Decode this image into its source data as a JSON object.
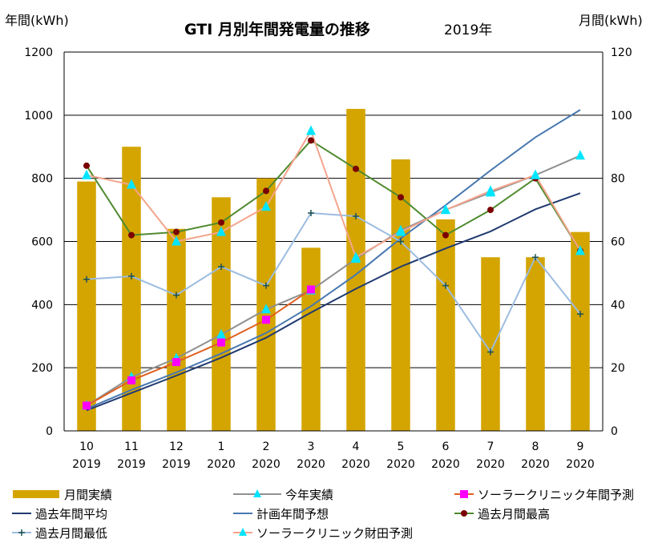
{
  "chart_data": {
    "type": "bar",
    "title": "GTI 月別年間発電量の推移",
    "subtitle": "2019年",
    "ylabel_left": "年間(kWh)",
    "ylabel_right": "月間(kWh)",
    "ylim_left": [
      0,
      1200
    ],
    "ylim_right": [
      0,
      120
    ],
    "yticks_left": [
      "0",
      "200",
      "400",
      "600",
      "800",
      "1000",
      "1200"
    ],
    "yticks_right": [
      "0",
      "20",
      "40",
      "60",
      "80",
      "100",
      "120"
    ],
    "grid": true,
    "legend_position": "bottom",
    "categories": [
      {
        "month": "10",
        "year": "2019"
      },
      {
        "month": "11",
        "year": "2019"
      },
      {
        "month": "12",
        "year": "2019"
      },
      {
        "month": "1",
        "year": "2020"
      },
      {
        "month": "2",
        "year": "2020"
      },
      {
        "month": "3",
        "year": "2020"
      },
      {
        "month": "4",
        "year": "2020"
      },
      {
        "month": "5",
        "year": "2020"
      },
      {
        "month": "6",
        "year": "2020"
      },
      {
        "month": "7",
        "year": "2020"
      },
      {
        "month": "8",
        "year": "2020"
      },
      {
        "month": "9",
        "year": "2020"
      }
    ],
    "series": [
      {
        "name": "月間実績",
        "kind": "bar",
        "axis": "right",
        "color": "#d4a500",
        "values": [
          79,
          90,
          64,
          74,
          80,
          58,
          102,
          86,
          67,
          55,
          55,
          63
        ]
      },
      {
        "name": "今年実績",
        "kind": "line",
        "axis": "left",
        "color": "#909090",
        "marker": "triangle",
        "marker_color": "#00e5ff",
        "values": [
          80,
          170,
          230,
          305,
          385,
          445,
          545,
          635,
          700,
          755,
          810,
          872
        ]
      },
      {
        "name": "ソーラークリニック年間予測",
        "kind": "line",
        "axis": "left",
        "color": "#e06020",
        "marker": "square",
        "marker_color": "#ff00ff",
        "values": [
          80,
          160,
          218,
          280,
          352,
          448,
          null,
          null,
          null,
          null,
          null,
          null
        ]
      },
      {
        "name": "過去年間平均",
        "kind": "line",
        "axis": "left",
        "color": "#203a70",
        "marker": "none",
        "values": [
          65,
          120,
          175,
          232,
          295,
          375,
          450,
          520,
          578,
          632,
          702,
          753
        ]
      },
      {
        "name": "計画年間予想",
        "kind": "line",
        "axis": "left",
        "color": "#4878b0",
        "marker": "none",
        "values": [
          70,
          130,
          185,
          245,
          310,
          395,
          495,
          610,
          715,
          825,
          930,
          1017
        ]
      },
      {
        "name": "過去月間最高",
        "kind": "line",
        "axis": "right",
        "color": "#4e8a2e",
        "marker": "circle",
        "marker_color": "#7a0000",
        "values": [
          84,
          62,
          63,
          66,
          76,
          92,
          83,
          74,
          62,
          70,
          80,
          57
        ]
      },
      {
        "name": "過去月間最低",
        "kind": "line",
        "axis": "right",
        "color": "#9cbce0",
        "marker": "plus",
        "marker_color": "#1a5050",
        "values": [
          48,
          49,
          43,
          52,
          46,
          69,
          68,
          60,
          46,
          25,
          55,
          37
        ]
      },
      {
        "name": "ソーラークリニック財田予測",
        "kind": "line",
        "axis": "right",
        "color": "#f4a48c",
        "marker": "triangle",
        "marker_color": "#00e5ff",
        "values": [
          81,
          78,
          60,
          63,
          71,
          95,
          55,
          63,
          70,
          76,
          81,
          57
        ]
      }
    ]
  }
}
